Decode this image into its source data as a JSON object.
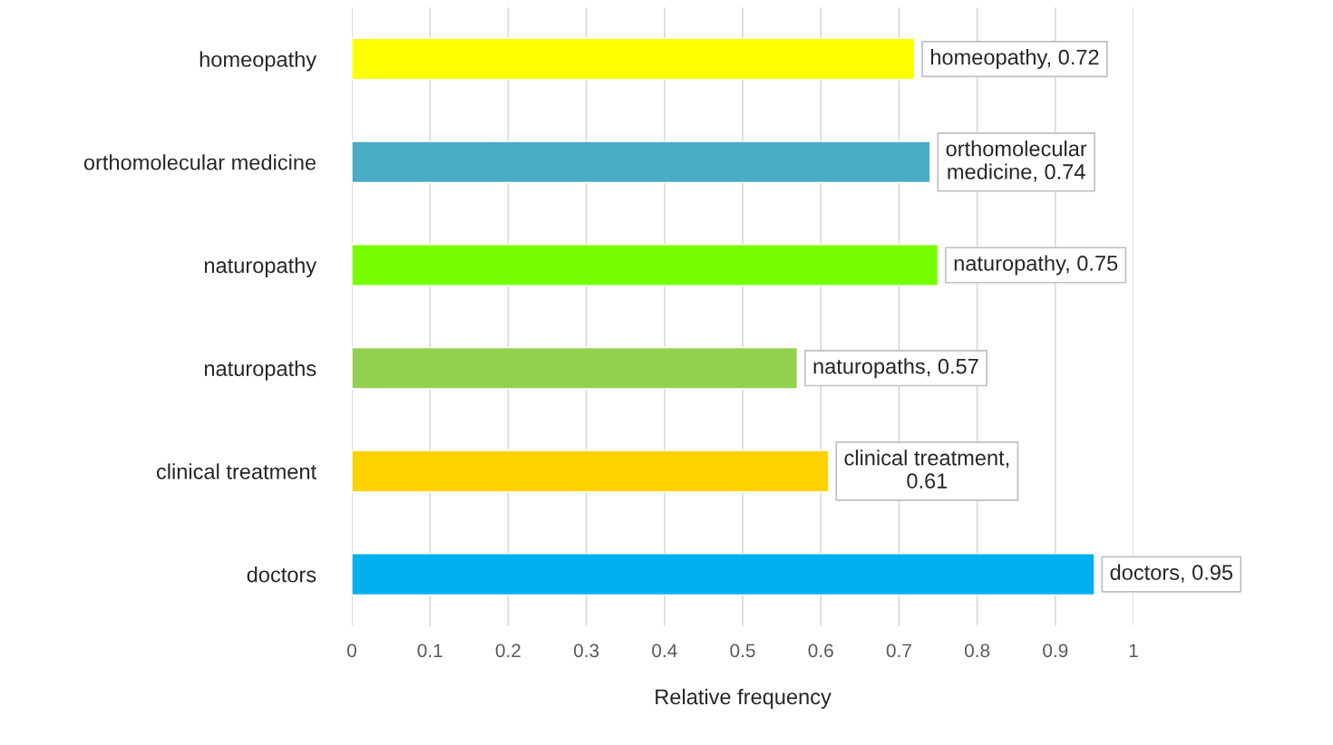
{
  "chart_data": {
    "type": "bar",
    "orientation": "horizontal",
    "xlabel": "Relative frequency",
    "categories": [
      "homeopathy",
      "orthomolecular medicine",
      "naturopathy",
      "naturopaths",
      "clinical treatment",
      "doctors"
    ],
    "values": [
      0.72,
      0.74,
      0.75,
      0.57,
      0.61,
      0.95
    ],
    "colors": [
      "#ffff00",
      "#4bacc6",
      "#77ff00",
      "#92d050",
      "#ffd200",
      "#00b0f0"
    ],
    "value_labels": [
      "homeopathy, 0.72",
      "orthomolecular\nmedicine, 0.74",
      "naturopathy, 0.75",
      "naturopaths, 0.57",
      "clinical treatment,\n0.61",
      "doctors, 0.95"
    ],
    "xlim": [
      0,
      1
    ],
    "xticks": [
      0,
      0.1,
      0.2,
      0.3,
      0.4,
      0.5,
      0.6,
      0.7,
      0.8,
      0.9,
      1
    ],
    "grid": "x"
  }
}
